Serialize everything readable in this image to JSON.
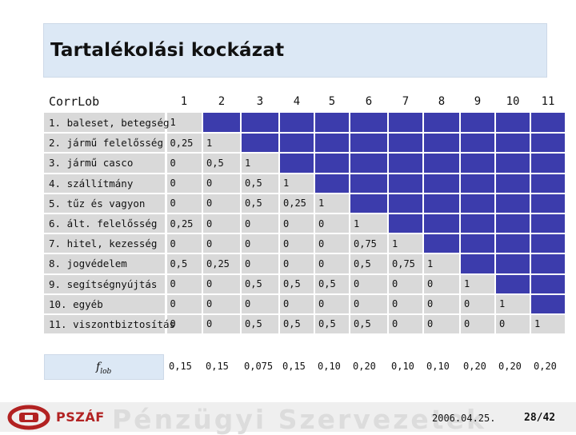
{
  "slide": {
    "title": "Tartalékolási kockázat",
    "footer_date": "2006.04.25.",
    "page": "28/42",
    "logo_text": "PSZÁF",
    "watermark": "Pénzügyi Szervezetek"
  },
  "matrix": {
    "corner_label": "Corr",
    "corner_sub": "Lob",
    "col_headers": [
      "1",
      "2",
      "3",
      "4",
      "5",
      "6",
      "7",
      "8",
      "9",
      "10",
      "11"
    ],
    "rows": [
      {
        "label": "1. baleset, betegség",
        "values": [
          "1"
        ]
      },
      {
        "label": "2. jármű felelősség",
        "values": [
          "0,25",
          "1"
        ]
      },
      {
        "label": "3. jármű casco",
        "values": [
          "0",
          "0,5",
          "1"
        ]
      },
      {
        "label": "4. szállítmány",
        "values": [
          "0",
          "0",
          "0,5",
          "1"
        ]
      },
      {
        "label": "5. tűz és vagyon",
        "values": [
          "0",
          "0",
          "0,5",
          "0,25",
          "1"
        ]
      },
      {
        "label": "6. ált. felelősség",
        "values": [
          "0,25",
          "0",
          "0",
          "0",
          "0",
          "1"
        ]
      },
      {
        "label": "7. hitel, kezesség",
        "values": [
          "0",
          "0",
          "0",
          "0",
          "0",
          "0,75",
          "1"
        ]
      },
      {
        "label": "8. jogvédelem",
        "values": [
          "0,5",
          "0,25",
          "0",
          "0",
          "0",
          "0,5",
          "0,75",
          "1"
        ]
      },
      {
        "label": "9. segítségnyújtás",
        "values": [
          "0",
          "0",
          "0,5",
          "0,5",
          "0,5",
          "0",
          "0",
          "0",
          "1"
        ]
      },
      {
        "label": "10. egyéb",
        "values": [
          "0",
          "0",
          "0",
          "0",
          "0",
          "0",
          "0",
          "0",
          "0",
          "1"
        ]
      },
      {
        "label": "11. viszontbiztosítás",
        "values": [
          "0",
          "0",
          "0,5",
          "0,5",
          "0,5",
          "0,5",
          "0",
          "0",
          "0",
          "0",
          "1"
        ]
      }
    ]
  },
  "flob": {
    "label": "f",
    "label_sub": "lob",
    "values": [
      "0,15",
      "0,15",
      "0,075",
      "0,15",
      "0,10",
      "0,20",
      "0,10",
      "0,10",
      "0,20",
      "0,20",
      "0,20"
    ]
  },
  "colors": {
    "filled_cell": "#3c3cac",
    "grey_cell": "#d9d9d9",
    "title_box": "#dce8f5",
    "logo_red": "#b22222"
  }
}
